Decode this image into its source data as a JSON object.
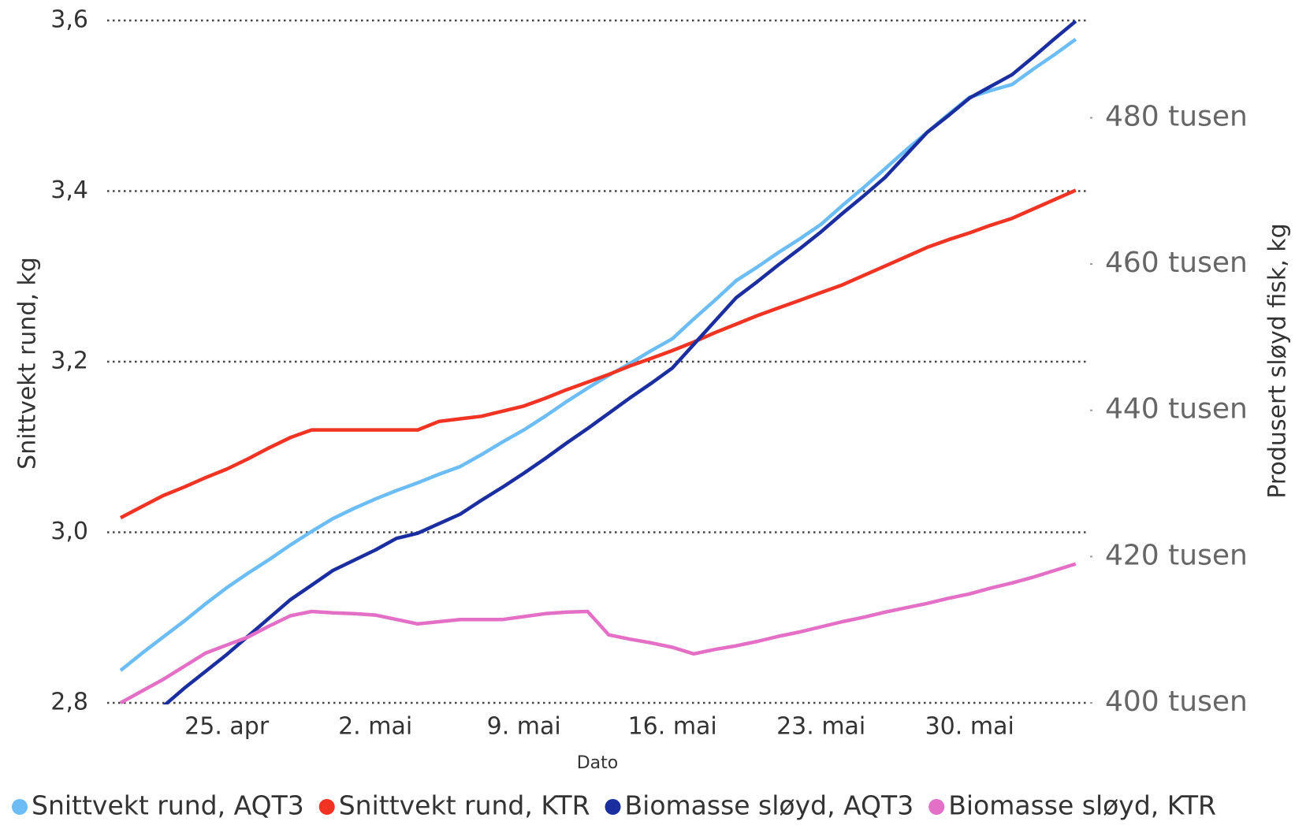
{
  "chart_data": {
    "type": "line",
    "x_label": "Dato",
    "y_label": "Snittvekt rund, kg",
    "y2_label": "Produsert sløyd fisk, kg",
    "categories": [
      null,
      null,
      null,
      null,
      null,
      "25. apr",
      null,
      null,
      null,
      null,
      null,
      null,
      "2. mai",
      null,
      null,
      null,
      null,
      null,
      null,
      "9. mai",
      null,
      null,
      null,
      null,
      null,
      null,
      "16. mai",
      null,
      null,
      null,
      null,
      null,
      null,
      "23. mai",
      null,
      null,
      null,
      null,
      null,
      null,
      "30. mai",
      null,
      null,
      null,
      null,
      null
    ],
    "ylim": [
      2.8,
      3.6
    ],
    "yticks": [
      {
        "value": 2.8,
        "label": "2,8"
      },
      {
        "value": 3.0,
        "label": "3,0"
      },
      {
        "value": 3.2,
        "label": "3,2"
      },
      {
        "value": 3.4,
        "label": "3,4"
      },
      {
        "value": 3.6,
        "label": "3,6"
      }
    ],
    "y2lim": [
      400000,
      493300
    ],
    "y2ticks": [
      {
        "value": 400000,
        "label": "400 tusen"
      },
      {
        "value": 420000,
        "label": "420 tusen"
      },
      {
        "value": 440000,
        "label": "440 tusen"
      },
      {
        "value": 460000,
        "label": "460 tusen"
      },
      {
        "value": 480000,
        "label": "480 tusen"
      }
    ],
    "grid": true,
    "legend": "bottom",
    "series": [
      {
        "name": "Snittvekt rund, AQT3",
        "color": "#6cbcf5",
        "values": [
          2.838,
          2.858,
          2.877,
          2.896,
          2.916,
          2.935,
          2.952,
          2.968,
          2.985,
          3.001,
          3.016,
          3.028,
          3.039,
          3.049,
          3.058,
          3.068,
          3.077,
          3.091,
          3.106,
          3.12,
          3.136,
          3.153,
          3.169,
          3.184,
          3.198,
          3.213,
          3.227,
          3.25,
          3.272,
          3.295,
          3.311,
          3.328,
          3.344,
          3.361,
          3.383,
          3.404,
          3.426,
          3.448,
          3.469,
          3.49,
          3.51,
          3.518,
          3.525,
          3.543,
          3.56,
          3.578
        ]
      },
      {
        "name": "Snittvekt rund, KTR",
        "color": "#f03323",
        "values": [
          3.017,
          3.03,
          3.043,
          3.053,
          3.064,
          3.074,
          3.086,
          3.099,
          3.111,
          3.12,
          3.12,
          3.12,
          3.12,
          3.12,
          3.12,
          3.13,
          3.133,
          3.136,
          3.142,
          3.148,
          3.157,
          3.167,
          3.176,
          3.185,
          3.195,
          3.204,
          3.213,
          3.223,
          3.234,
          3.244,
          3.254,
          3.263,
          3.272,
          3.281,
          3.29,
          3.301,
          3.312,
          3.323,
          3.334,
          3.343,
          3.351,
          3.36,
          3.368,
          3.379,
          3.39,
          3.401
        ]
      },
      {
        "name": "Biomasse sløyd, AQT3",
        "color": "#1a2ea0",
        "axis": "y2",
        "values": [
          397000,
          398200,
          399500,
          402000,
          404300,
          406600,
          409100,
          411600,
          414100,
          416100,
          418100,
          419500,
          420900,
          422500,
          423200,
          424500,
          425800,
          427700,
          429500,
          431400,
          433400,
          435500,
          437500,
          439600,
          441700,
          443700,
          445800,
          449000,
          452200,
          455400,
          457600,
          459900,
          462100,
          464400,
          466900,
          469300,
          471800,
          474900,
          478000,
          480300,
          482700,
          484300,
          485900,
          488300,
          490800,
          493200
        ]
      },
      {
        "name": "Biomasse sløyd, KTR",
        "color": "#e36fc7",
        "axis": "y2",
        "values": [
          400000,
          401600,
          403200,
          405000,
          406800,
          407900,
          409000,
          410500,
          411900,
          412500,
          412300,
          412200,
          412000,
          411400,
          410800,
          411100,
          411400,
          411400,
          411400,
          411800,
          412200,
          412400,
          412500,
          409300,
          408700,
          408200,
          407600,
          406700,
          407300,
          407800,
          408400,
          409100,
          409700,
          410400,
          411100,
          411700,
          412400,
          413000,
          413600,
          414300,
          414900,
          415700,
          416400,
          417200,
          418100,
          419000
        ]
      }
    ]
  }
}
